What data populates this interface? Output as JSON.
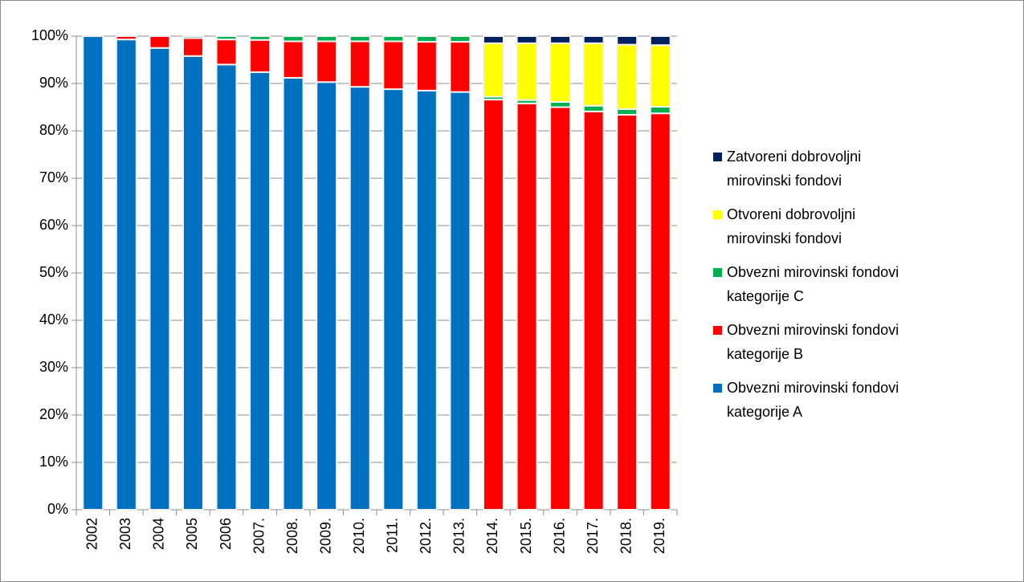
{
  "chart_data": {
    "type": "stacked_bar",
    "categories": [
      "2002",
      "2003",
      "2004",
      "2005",
      "2006",
      "2007.",
      "2008.",
      "2009.",
      "2010.",
      "2011.",
      "2012.",
      "2013.",
      "2014.",
      "2015.",
      "2016.",
      "2017.",
      "2018.",
      "2019."
    ],
    "series": [
      {
        "name": "Obvezni mirovinski fondovi kategorije A",
        "color": "#0070c0",
        "values": [
          100,
          99.3,
          97.5,
          95.8,
          94.0,
          92.4,
          91.2,
          90.3,
          89.3,
          88.8,
          88.5,
          88.2,
          0,
          0,
          0,
          0,
          0,
          0
        ]
      },
      {
        "name": "Obvezni mirovinski fondovi kategorije B",
        "color": "#ff0000",
        "values": [
          0,
          0.7,
          2.5,
          3.8,
          5.3,
          6.8,
          7.7,
          8.6,
          9.6,
          10.1,
          10.3,
          10.6,
          86.6,
          85.8,
          85.0,
          84.1,
          83.4,
          83.7
        ]
      },
      {
        "name": "Obvezni mirovinski fondovi kategorije C",
        "color": "#00b050",
        "values": [
          0,
          0,
          0,
          0.4,
          0.7,
          0.8,
          1.1,
          1.1,
          1.1,
          1.1,
          1.2,
          1.2,
          0.6,
          0.7,
          1.1,
          1.2,
          1.2,
          1.4
        ]
      },
      {
        "name": "Otvoreni dobrovoljni mirovinski fondovi",
        "color": "#ffff00",
        "values": [
          0,
          0,
          0,
          0,
          0,
          0,
          0,
          0,
          0,
          0,
          0,
          0,
          11.3,
          12.0,
          12.4,
          13.2,
          13.6,
          13.0
        ]
      },
      {
        "name": "Zatvoreni dobrovoljni mirovinski fondovi",
        "color": "#002060",
        "values": [
          0,
          0,
          0,
          0,
          0,
          0,
          0,
          0,
          0,
          0,
          0,
          0,
          1.5,
          1.5,
          1.5,
          1.5,
          1.8,
          1.9
        ]
      }
    ],
    "ylim": [
      0,
      100
    ],
    "yticks": [
      {
        "value": 0,
        "label": "0%"
      },
      {
        "value": 10,
        "label": "10%"
      },
      {
        "value": 20,
        "label": "20%"
      },
      {
        "value": 30,
        "label": "30%"
      },
      {
        "value": 40,
        "label": "40%"
      },
      {
        "value": 50,
        "label": "50%"
      },
      {
        "value": 60,
        "label": "60%"
      },
      {
        "value": 70,
        "label": "70%"
      },
      {
        "value": 80,
        "label": "80%"
      },
      {
        "value": 90,
        "label": "90%"
      },
      {
        "value": 100,
        "label": "100%"
      }
    ],
    "grid": true,
    "legend": "right"
  }
}
